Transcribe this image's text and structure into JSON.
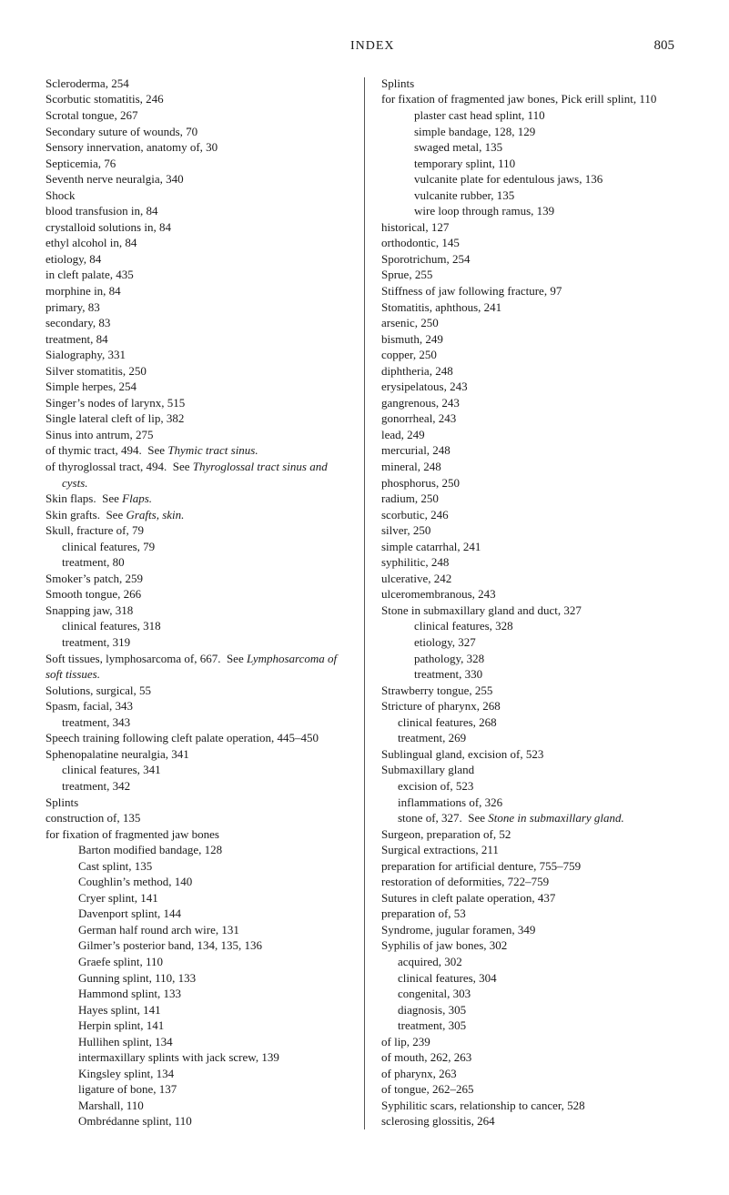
{
  "header": {
    "title": "INDEX",
    "page": "805"
  },
  "left": [
    {
      "t": "Scleroderma, 254",
      "i": 0
    },
    {
      "t": "Scorbutic stomatitis, 246",
      "i": 0
    },
    {
      "t": "Scrotal tongue, 267",
      "i": 0
    },
    {
      "t": "Secondary suture of wounds, 70",
      "i": 0
    },
    {
      "t": "Sensory innervation, anatomy of, 30",
      "i": 0
    },
    {
      "t": "Septicemia, 76",
      "i": 0
    },
    {
      "t": "Seventh nerve neuralgia, 340",
      "i": 0
    },
    {
      "t": "Shock",
      "i": 0
    },
    {
      "t": "blood transfusion in, 84",
      "i": 1
    },
    {
      "t": "crystalloid solutions in, 84",
      "i": 1
    },
    {
      "t": "ethyl alcohol in, 84",
      "i": 1
    },
    {
      "t": "etiology, 84",
      "i": 1
    },
    {
      "t": "in cleft palate, 435",
      "i": 1
    },
    {
      "t": "morphine in, 84",
      "i": 1
    },
    {
      "t": "primary, 83",
      "i": 1
    },
    {
      "t": "secondary, 83",
      "i": 1
    },
    {
      "t": "treatment, 84",
      "i": 1
    },
    {
      "t": "Sialography, 331",
      "i": 0
    },
    {
      "t": "Silver stomatitis, 250",
      "i": 0
    },
    {
      "t": "Simple herpes, 254",
      "i": 0
    },
    {
      "t": "Singer’s nodes of larynx, 515",
      "i": 0
    },
    {
      "t": "Single lateral cleft of lip, 382",
      "i": 0
    },
    {
      "t": "Sinus into antrum, 275",
      "i": 0
    },
    {
      "t": "of thymic tract, 494.  See <i>Thymic tract sinus.</i>",
      "i": 1
    },
    {
      "t": "of thyroglossal tract, 494.  See <i>Thyro­glossal tract sinus and cysts.</i>",
      "i": 1
    },
    {
      "t": "Skin flaps.  See <i>Flaps.</i>",
      "i": 0
    },
    {
      "t": "Skin grafts.  See <i>Grafts, skin.</i>",
      "i": 0
    },
    {
      "t": "Skull, fracture of, 79",
      "i": 0
    },
    {
      "t": "clinical features, 79",
      "i": 2
    },
    {
      "t": "treatment, 80",
      "i": 2
    },
    {
      "t": "Smoker’s patch, 259",
      "i": 0
    },
    {
      "t": "Smooth tongue, 266",
      "i": 0
    },
    {
      "t": "Snapping jaw, 318",
      "i": 0
    },
    {
      "t": "clinical features, 318",
      "i": 2
    },
    {
      "t": "treatment, 319",
      "i": 2
    },
    {
      "t": "Soft tissues, lymphosarcoma of, 667.  See <i>Lymphosarcoma of soft tissues.</i>",
      "i": 0
    },
    {
      "t": "Solutions, surgical, 55",
      "i": 0
    },
    {
      "t": "Spasm, facial, 343",
      "i": 0
    },
    {
      "t": "treatment, 343",
      "i": 2
    },
    {
      "t": "Speech training following cleft palate opera­tion, 445–450",
      "i": 0
    },
    {
      "t": "Sphenopalatine neuralgia, 341",
      "i": 0
    },
    {
      "t": "clinical features, 341",
      "i": 2
    },
    {
      "t": "treatment, 342",
      "i": 2
    },
    {
      "t": "Splints",
      "i": 0
    },
    {
      "t": "construction of, 135",
      "i": 1
    },
    {
      "t": "for fixation of fragmented jaw bones",
      "i": 1
    },
    {
      "t": "Barton modified bandage, 128",
      "i": 3
    },
    {
      "t": "Cast splint, 135",
      "i": 3
    },
    {
      "t": "Coughlin’s method, 140",
      "i": 3
    },
    {
      "t": "Cryer splint, 141",
      "i": 3
    },
    {
      "t": "Davenport splint, 144",
      "i": 3
    },
    {
      "t": "German half round arch wire, 131",
      "i": 3
    },
    {
      "t": "Gilmer’s posterior band, 134, 135, 136",
      "i": 3
    },
    {
      "t": "Graefe splint, 110",
      "i": 3
    },
    {
      "t": "Gunning splint, 110, 133",
      "i": 3
    },
    {
      "t": "Hammond splint, 133",
      "i": 3
    },
    {
      "t": "Hayes splint, 141",
      "i": 3
    },
    {
      "t": "Herpin splint, 141",
      "i": 3
    },
    {
      "t": "Hullihen splint, 134",
      "i": 3
    },
    {
      "t": "intermaxillary splints with jack screw, 139",
      "i": 3
    },
    {
      "t": "Kingsley splint, 134",
      "i": 3
    },
    {
      "t": "ligature of bone, 137",
      "i": 3
    },
    {
      "t": "Marshall, 110",
      "i": 3
    },
    {
      "t": "Ombrédanne splint, 110",
      "i": 3
    }
  ],
  "right": [
    {
      "t": "Splints",
      "i": 0
    },
    {
      "t": "for fixation of fragmented jaw bones, Pick erill splint, 110",
      "i": 1
    },
    {
      "t": "plaster cast head splint, 110",
      "i": 3
    },
    {
      "t": "simple bandage, 128, 129",
      "i": 3
    },
    {
      "t": "swaged metal, 135",
      "i": 3
    },
    {
      "t": "temporary splint, 110",
      "i": 3
    },
    {
      "t": "vulcanite plate for edentulous jaws, 136",
      "i": 3
    },
    {
      "t": "vulcanite rubber, 135",
      "i": 3
    },
    {
      "t": "wire loop through ramus, 139",
      "i": 3
    },
    {
      "t": "historical, 127",
      "i": 1
    },
    {
      "t": "orthodontic, 145",
      "i": 1
    },
    {
      "t": "Sporotrichum, 254",
      "i": 0
    },
    {
      "t": "Sprue, 255",
      "i": 0
    },
    {
      "t": "Stiffness of jaw following fracture, 97",
      "i": 0
    },
    {
      "t": "Stomatitis, aphthous, 241",
      "i": 0
    },
    {
      "t": "arsenic, 250",
      "i": 1
    },
    {
      "t": "bismuth, 249",
      "i": 1
    },
    {
      "t": "copper, 250",
      "i": 1
    },
    {
      "t": "diphtheria, 248",
      "i": 1
    },
    {
      "t": "erysipelatous, 243",
      "i": 1
    },
    {
      "t": "gangrenous, 243",
      "i": 1
    },
    {
      "t": "gonorrheal, 243",
      "i": 1
    },
    {
      "t": "lead, 249",
      "i": 1
    },
    {
      "t": "mercurial, 248",
      "i": 1
    },
    {
      "t": "mineral, 248",
      "i": 1
    },
    {
      "t": "phosphorus, 250",
      "i": 1
    },
    {
      "t": "radium, 250",
      "i": 1
    },
    {
      "t": "scorbutic, 246",
      "i": 1
    },
    {
      "t": "silver, 250",
      "i": 1
    },
    {
      "t": "simple catarrhal, 241",
      "i": 1
    },
    {
      "t": "syphilitic, 248",
      "i": 1
    },
    {
      "t": "ulcerative, 242",
      "i": 1
    },
    {
      "t": "ulceromembranous, 243",
      "i": 1
    },
    {
      "t": "Stone in submaxillary gland and duct, 327",
      "i": 0
    },
    {
      "t": "clinical features, 328",
      "i": 3
    },
    {
      "t": "etiology, 327",
      "i": 3
    },
    {
      "t": "pathology, 328",
      "i": 3
    },
    {
      "t": "treatment, 330",
      "i": 3
    },
    {
      "t": "Strawberry tongue, 255",
      "i": 0
    },
    {
      "t": "Stricture of pharynx, 268",
      "i": 0
    },
    {
      "t": "clinical features, 268",
      "i": 2
    },
    {
      "t": "treatment, 269",
      "i": 2
    },
    {
      "t": "Sublingual gland, excision of, 523",
      "i": 0
    },
    {
      "t": "Submaxillary gland",
      "i": 0
    },
    {
      "t": "excision of, 523",
      "i": 2
    },
    {
      "t": "inflammations of, 326",
      "i": 2
    },
    {
      "t": "stone of, 327.  See <i>Stone in submaxillary gland.</i>",
      "i": 2
    },
    {
      "t": "Surgeon, preparation of, 52",
      "i": 0
    },
    {
      "t": "Surgical extractions, 211",
      "i": 0
    },
    {
      "t": "preparation for artificial denture, 755–759",
      "i": 1
    },
    {
      "t": "restoration of deformities, 722–759",
      "i": 1
    },
    {
      "t": "Sutures in cleft palate operation, 437",
      "i": 0
    },
    {
      "t": "preparation of, 53",
      "i": 1
    },
    {
      "t": "Syndrome, jugular foramen, 349",
      "i": 0
    },
    {
      "t": "Syphilis of jaw bones, 302",
      "i": 0
    },
    {
      "t": "acquired, 302",
      "i": 2
    },
    {
      "t": "clinical features, 304",
      "i": 2
    },
    {
      "t": "congenital, 303",
      "i": 2
    },
    {
      "t": "diagnosis, 305",
      "i": 2
    },
    {
      "t": "treatment, 305",
      "i": 2
    },
    {
      "t": "of lip, 239",
      "i": 1
    },
    {
      "t": "of mouth, 262, 263",
      "i": 1
    },
    {
      "t": "of pharynx, 263",
      "i": 1
    },
    {
      "t": "of tongue, 262–265",
      "i": 1
    },
    {
      "t": "Syphilitic scars, relationship to cancer, 528",
      "i": 0
    },
    {
      "t": "sclerosing glossitis, 264",
      "i": 1
    }
  ]
}
